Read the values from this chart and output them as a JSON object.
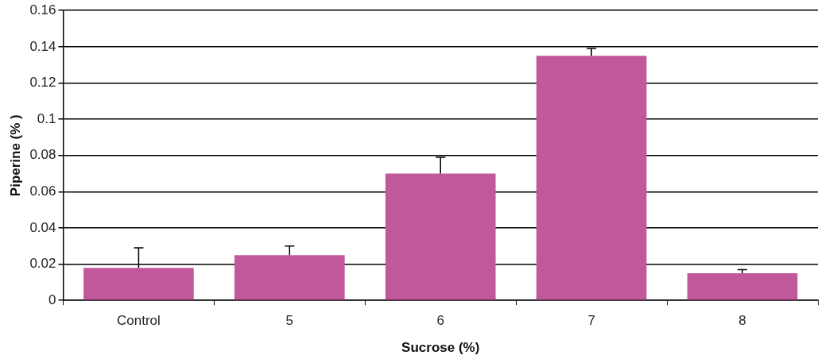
{
  "chart_data": {
    "type": "bar",
    "xlabel": "Sucrose (%)",
    "ylabel": "Piperine (% )",
    "categories": [
      "Control",
      "5",
      "6",
      "7",
      "8"
    ],
    "values": [
      0.018,
      0.025,
      0.07,
      0.135,
      0.015
    ],
    "errors": [
      [
        0.018,
        0.029
      ],
      [
        0.025,
        0.03
      ],
      [
        0.07,
        0.079
      ],
      [
        0.135,
        0.139
      ],
      [
        0.015,
        0.017
      ]
    ],
    "color": "#c0589b",
    "ylim": [
      0,
      0.16
    ],
    "yticks": [
      0,
      0.02,
      0.04,
      0.06,
      0.08,
      0.1,
      0.12,
      0.14,
      0.16
    ],
    "grid": "y",
    "legend": false
  }
}
